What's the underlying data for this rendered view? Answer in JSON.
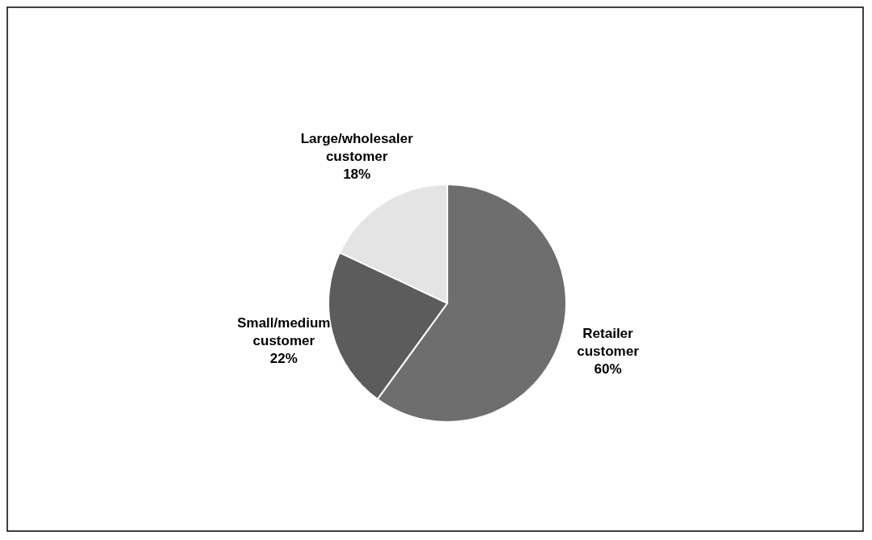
{
  "chart_data": {
    "type": "pie",
    "categories": [
      "Retailer customer",
      "Small/medium customer",
      "Large/wholesaler customer"
    ],
    "values": [
      60,
      22,
      18
    ],
    "colors": [
      "#6e6e6e",
      "#5c5c5c",
      "#e4e4e4"
    ],
    "value_labels": [
      "60%",
      "22%",
      "18%"
    ]
  }
}
